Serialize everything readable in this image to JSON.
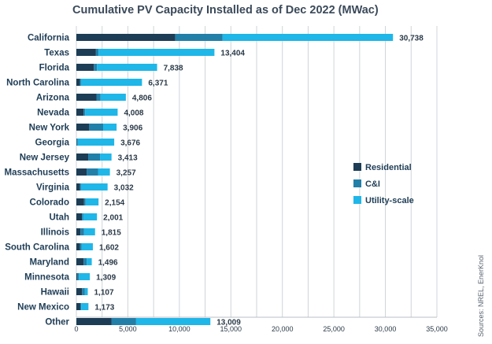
{
  "chart_data": {
    "type": "bar",
    "orientation": "horizontal",
    "stacked": true,
    "title": "Cumulative PV Capacity Installed as of Dec 2022 (MWac)",
    "xlabel": "",
    "ylabel": "",
    "xlim": [
      0,
      35000
    ],
    "ticks": [
      0,
      5000,
      10000,
      15000,
      20000,
      25000,
      30000,
      35000
    ],
    "tick_labels": [
      "0",
      "5,000",
      "10,000",
      "15,000",
      "20,000",
      "25,000",
      "30,000",
      "35,000"
    ],
    "grid": "vertical",
    "legend_position": "right",
    "categories": [
      "California",
      "Texas",
      "Florida",
      "North Carolina",
      "Arizona",
      "Nevada",
      "New York",
      "Georgia",
      "New Jersey",
      "Massachusetts",
      "Virginia",
      "Colorado",
      "Utah",
      "Illinois",
      "South Carolina",
      "Maryland",
      "Minnesota",
      "Hawaii",
      "New Mexico",
      "Other"
    ],
    "totals": [
      30738,
      13404,
      7838,
      6371,
      4806,
      4008,
      3906,
      3676,
      3413,
      3257,
      3032,
      2154,
      2001,
      1815,
      1602,
      1496,
      1309,
      1107,
      1173,
      13009
    ],
    "total_labels": [
      "30,738",
      "13,404",
      "7,838",
      "6,371",
      "4,806",
      "4,008",
      "3,906",
      "3,676",
      "3,413",
      "3,257",
      "3,032",
      "2,154",
      "2,001",
      "1,815",
      "1,602",
      "1,496",
      "1,309",
      "1,107",
      "1,173",
      "13,009"
    ],
    "series": [
      {
        "name": "Residential",
        "color": "#1c3d55",
        "values": [
          9600,
          1900,
          1700,
          350,
          1950,
          700,
          1250,
          50,
          1150,
          1000,
          350,
          750,
          550,
          400,
          350,
          700,
          100,
          550,
          380,
          3400
        ]
      },
      {
        "name": "C&I",
        "color": "#227fa8",
        "values": [
          4600,
          250,
          300,
          100,
          400,
          150,
          1350,
          70,
          1150,
          1100,
          100,
          150,
          100,
          350,
          150,
          300,
          150,
          280,
          90,
          2400
        ]
      },
      {
        "name": "Utility-scale",
        "color": "#1fb6e8",
        "values": [
          16538,
          11254,
          5838,
          5921,
          2456,
          3158,
          1306,
          3556,
          1113,
          1157,
          2582,
          1254,
          1351,
          1065,
          1102,
          496,
          1059,
          277,
          703,
          7209
        ]
      }
    ]
  },
  "source_note": "Sources: NREL, EnerKnol"
}
